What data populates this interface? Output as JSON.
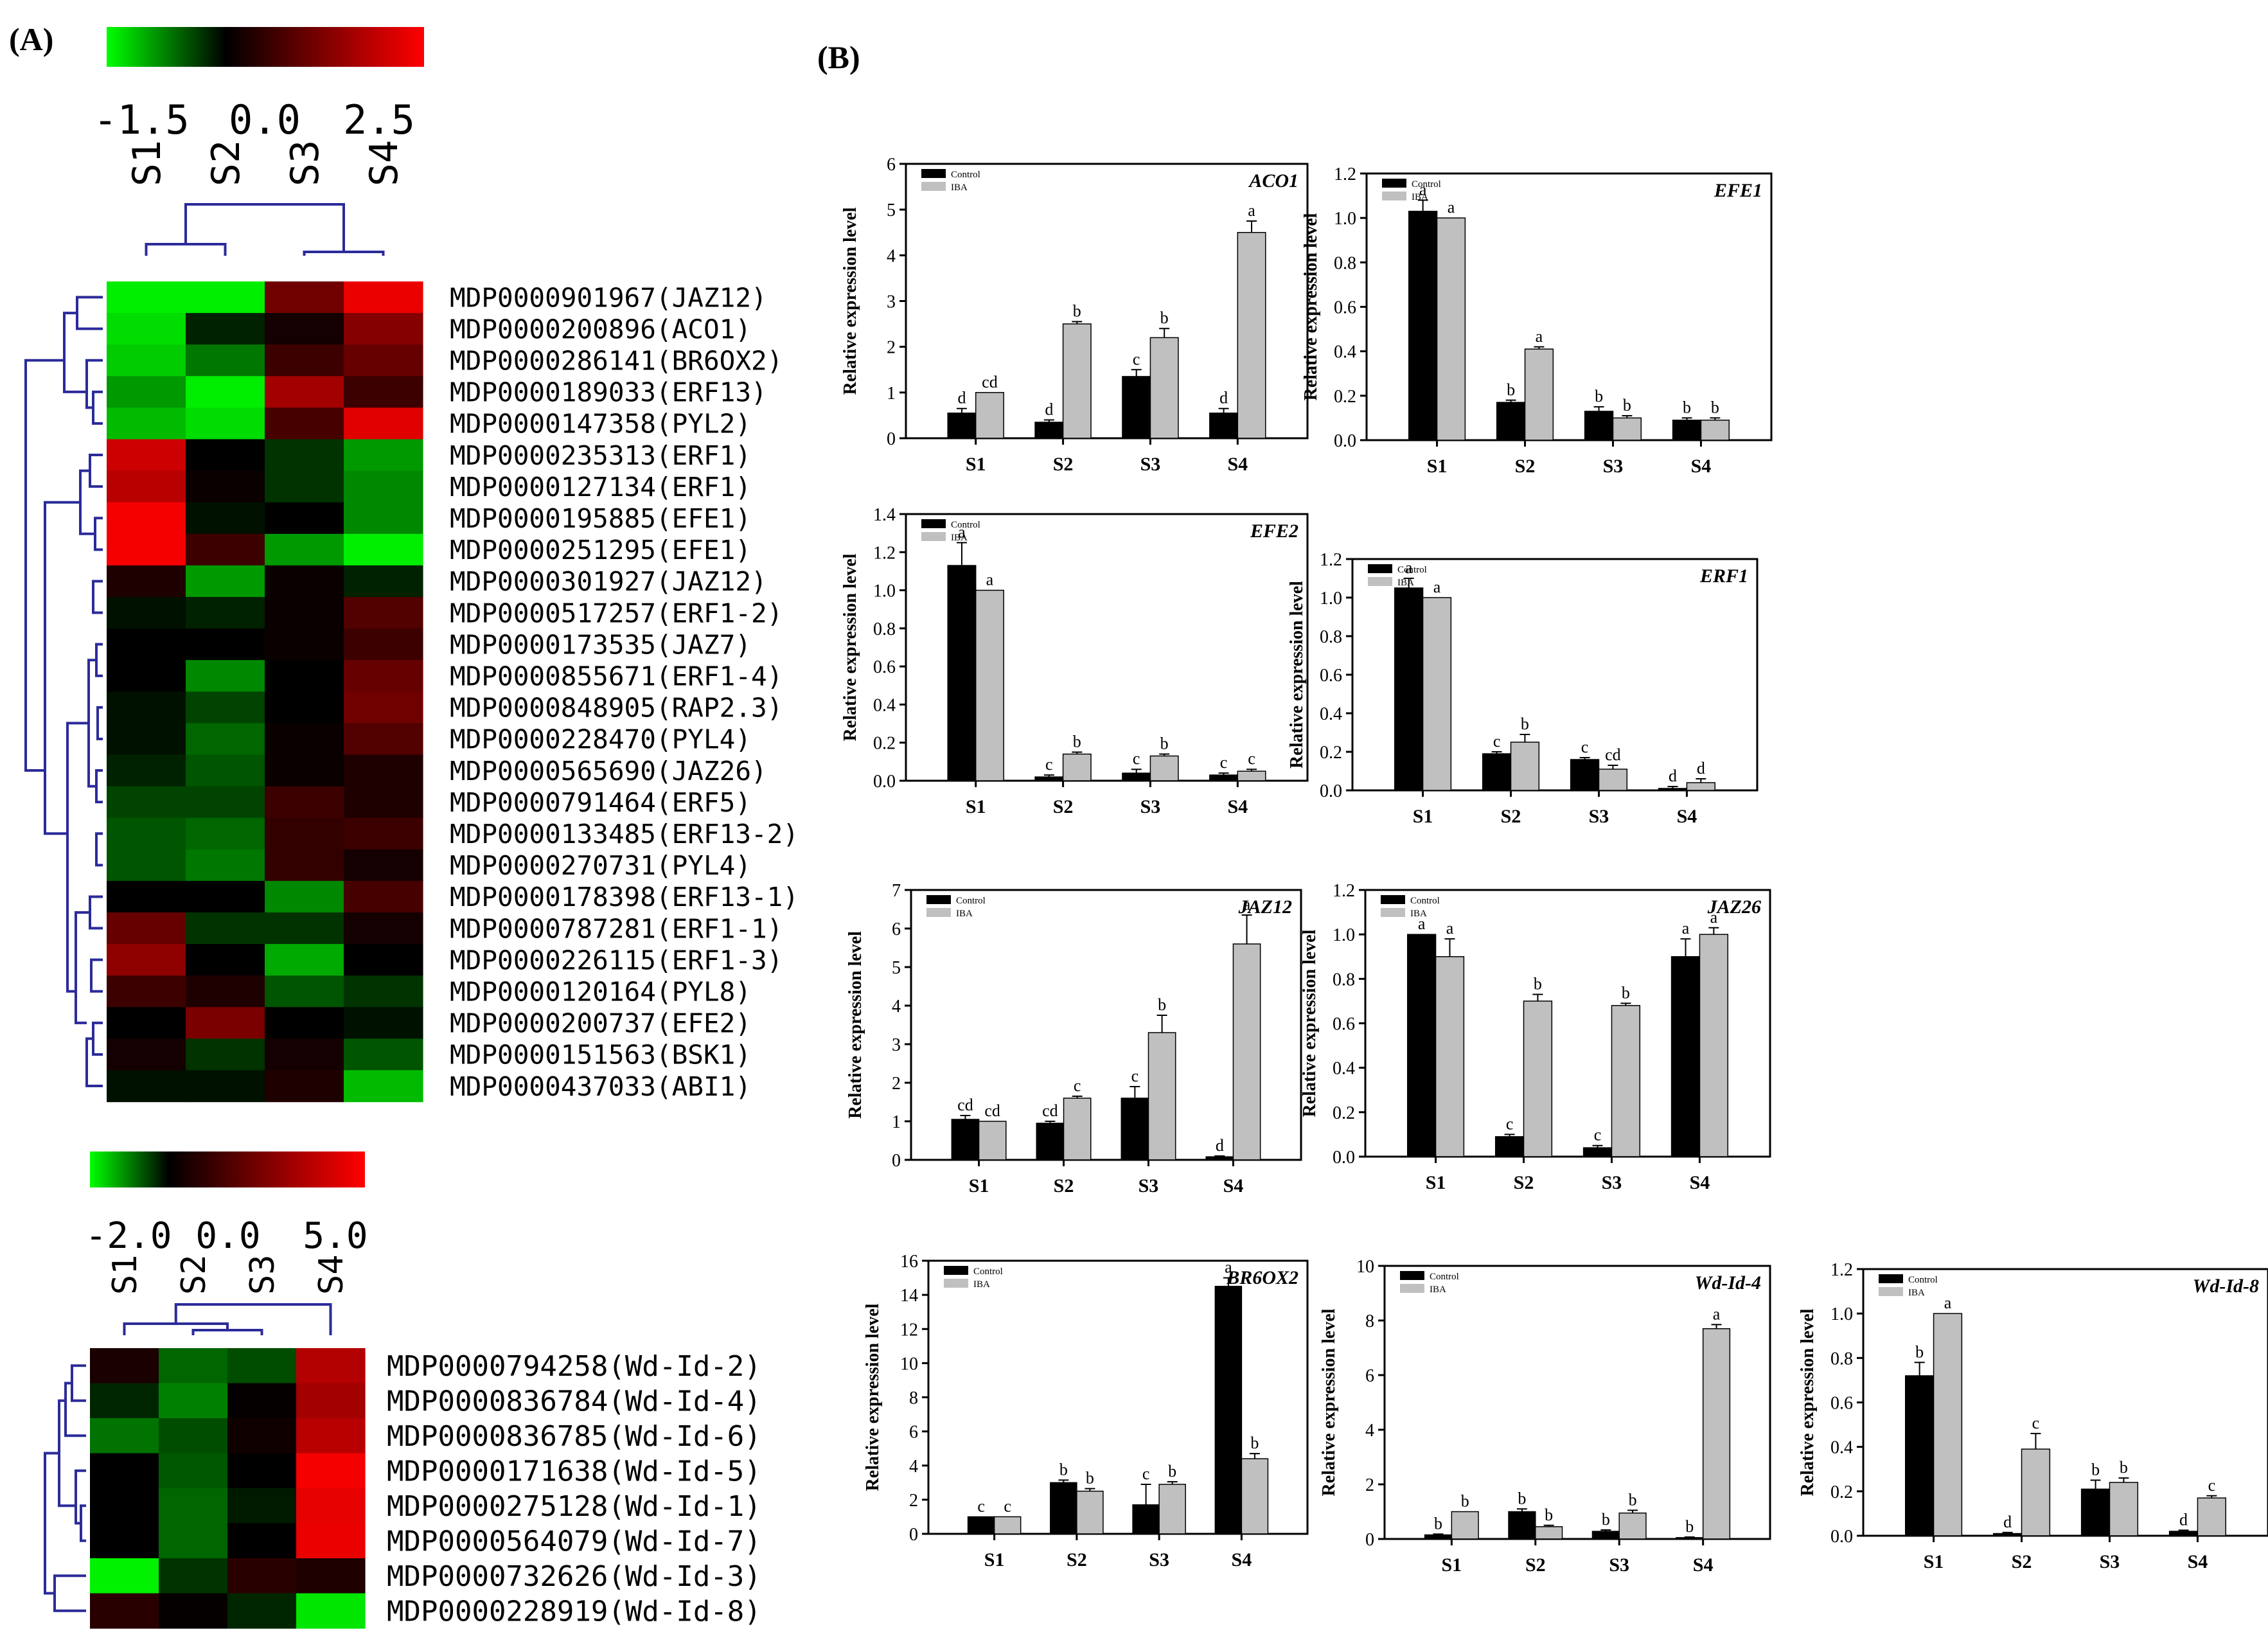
{
  "panel_a_label": "(A)",
  "panel_b_label": "(B)",
  "colors": {
    "green": "#00ff00",
    "black": "#000000",
    "red": "#ff0000",
    "control": "#000000",
    "iba": "#c0c0c0",
    "dendro": "#2b2b9a"
  },
  "heatmap1": {
    "scale_ticks": [
      "-1.5",
      "0.0",
      "2.5"
    ],
    "scale_range": [
      -1.5,
      2.5
    ],
    "columns": [
      "S1",
      "S2",
      "S3",
      "S4"
    ],
    "rows": [
      {
        "label": "MDP0000901967(JAZ12)",
        "values": [
          -1.4,
          -1.4,
          1.1,
          2.3
        ]
      },
      {
        "label": "MDP0000200896(ACO1)",
        "values": [
          -1.3,
          -0.2,
          0.2,
          1.3
        ]
      },
      {
        "label": "MDP0000286141(BR6OX2)",
        "values": [
          -1.2,
          -0.7,
          0.6,
          1.0
        ]
      },
      {
        "label": "MDP0000189033(ERF13)",
        "values": [
          -0.9,
          -1.4,
          1.6,
          0.6
        ]
      },
      {
        "label": "MDP0000147358(PYL2)",
        "values": [
          -1.1,
          -1.3,
          0.7,
          2.2
        ]
      },
      {
        "label": "MDP0000235313(ERF1)",
        "values": [
          2.0,
          0.0,
          -0.3,
          -0.9
        ]
      },
      {
        "label": "MDP0000127134(ERF1)",
        "values": [
          1.8,
          0.1,
          -0.3,
          -0.8
        ]
      },
      {
        "label": "MDP0000195885(EFE1)",
        "values": [
          2.4,
          -0.1,
          0.0,
          -0.8
        ]
      },
      {
        "label": "MDP0000251295(EFE1)",
        "values": [
          2.4,
          0.6,
          -0.9,
          -1.4
        ]
      },
      {
        "label": "MDP0000301927(JAZ12)",
        "values": [
          0.3,
          -0.9,
          0.1,
          -0.2
        ]
      },
      {
        "label": "MDP0000517257(ERF1-2)",
        "values": [
          -0.1,
          -0.2,
          0.1,
          0.8
        ]
      },
      {
        "label": "MDP0000173535(JAZ7)",
        "values": [
          0.0,
          0.0,
          0.1,
          0.6
        ]
      },
      {
        "label": "MDP0000855671(ERF1-4)",
        "values": [
          0.0,
          -0.8,
          0.0,
          1.0
        ]
      },
      {
        "label": "MDP0000848905(RAP2.3)",
        "values": [
          -0.1,
          -0.4,
          0.0,
          1.1
        ]
      },
      {
        "label": "MDP0000228470(PYL4)",
        "values": [
          -0.1,
          -0.6,
          0.1,
          0.8
        ]
      },
      {
        "label": "MDP0000565690(JAZ26)",
        "values": [
          -0.2,
          -0.5,
          0.1,
          0.3
        ]
      },
      {
        "label": "MDP0000791464(ERF5)",
        "values": [
          -0.4,
          -0.4,
          0.6,
          0.3
        ]
      },
      {
        "label": "MDP0000133485(ERF13-2)",
        "values": [
          -0.5,
          -0.6,
          0.5,
          0.6
        ]
      },
      {
        "label": "MDP0000270731(PYL4)",
        "values": [
          -0.5,
          -0.7,
          0.5,
          0.2
        ]
      },
      {
        "label": "MDP0000178398(ERF13-1)",
        "values": [
          0.0,
          0.0,
          -0.8,
          0.7
        ]
      },
      {
        "label": "MDP0000787281(ERF1-1)",
        "values": [
          1.0,
          -0.3,
          -0.3,
          0.2
        ]
      },
      {
        "label": "MDP0000226115(ERF1-3)",
        "values": [
          1.4,
          0.0,
          -1.0,
          0.0
        ]
      },
      {
        "label": "MDP0000120164(PYL8)",
        "values": [
          0.6,
          0.3,
          -0.5,
          -0.3
        ]
      },
      {
        "label": "MDP0000200737(EFE2)",
        "values": [
          0.0,
          1.2,
          0.0,
          -0.1
        ]
      },
      {
        "label": "MDP0000151563(BSK1)",
        "values": [
          0.2,
          -0.3,
          0.2,
          -0.5
        ]
      },
      {
        "label": "MDP0000437033(ABI1)",
        "values": [
          -0.1,
          -0.1,
          0.3,
          -1.1
        ]
      }
    ]
  },
  "heatmap2": {
    "scale_ticks": [
      "-2.0",
      "0.0",
      "5.0"
    ],
    "scale_range": [
      -2.0,
      5.0
    ],
    "columns": [
      "S1",
      "S2",
      "S3",
      "S4"
    ],
    "rows": [
      {
        "label": "MDP0000794258(Wd-Id-2)",
        "values": [
          0.5,
          -0.8,
          -0.6,
          3.5
        ]
      },
      {
        "label": "MDP0000836784(Wd-Id-4)",
        "values": [
          -0.3,
          -1.0,
          0.1,
          3.2
        ]
      },
      {
        "label": "MDP0000836785(Wd-Id-6)",
        "values": [
          -0.9,
          -0.6,
          0.3,
          3.6
        ]
      },
      {
        "label": "MDP0000171638(Wd-Id-5)",
        "values": [
          0.0,
          -0.7,
          0.0,
          4.8
        ]
      },
      {
        "label": "MDP0000275128(Wd-Id-1)",
        "values": [
          0.0,
          -0.8,
          -0.2,
          4.5
        ]
      },
      {
        "label": "MDP0000564079(Wd-Id-7)",
        "values": [
          0.0,
          -0.8,
          0.0,
          4.6
        ]
      },
      {
        "label": "MDP0000732626(Wd-Id-3)",
        "values": [
          -1.9,
          -0.4,
          0.8,
          0.6
        ]
      },
      {
        "label": "MDP0000228919(Wd-Id-8)",
        "values": [
          0.8,
          0.1,
          -0.3,
          -1.8
        ]
      }
    ]
  },
  "chart_data": [
    {
      "type": "bar",
      "title": "ACO1",
      "categories": [
        "S1",
        "S2",
        "S3",
        "S4"
      ],
      "ylabel": "Relative expression level",
      "ylim": [
        0,
        6
      ],
      "yticks": [
        "0",
        "1",
        "2",
        "3",
        "4",
        "5",
        "6"
      ],
      "series": [
        {
          "name": "Control",
          "values": [
            0.55,
            0.35,
            1.35,
            0.55
          ],
          "errors": [
            0.1,
            0.05,
            0.15,
            0.1
          ],
          "letters": [
            "d",
            "d",
            "c",
            "d"
          ]
        },
        {
          "name": "IBA",
          "values": [
            1.0,
            2.5,
            2.2,
            4.5
          ],
          "errors": [
            0.0,
            0.05,
            0.2,
            0.25
          ],
          "letters": [
            "cd",
            "b",
            "b",
            "a"
          ]
        }
      ]
    },
    {
      "type": "bar",
      "title": "EFE1",
      "categories": [
        "S1",
        "S2",
        "S3",
        "S4"
      ],
      "ylabel": "Relative expression level",
      "ylim": [
        0,
        1.2
      ],
      "yticks": [
        "0.0",
        "0.2",
        "0.4",
        "0.6",
        "0.8",
        "1.0",
        "1.2"
      ],
      "series": [
        {
          "name": "Control",
          "values": [
            1.03,
            0.17,
            0.13,
            0.09
          ],
          "errors": [
            0.05,
            0.01,
            0.02,
            0.01
          ],
          "letters": [
            "a",
            "b",
            "b",
            "b"
          ]
        },
        {
          "name": "IBA",
          "values": [
            1.0,
            0.41,
            0.1,
            0.09
          ],
          "errors": [
            0.0,
            0.01,
            0.01,
            0.01
          ],
          "letters": [
            "a",
            "a",
            "b",
            "b"
          ]
        }
      ]
    },
    {
      "type": "bar",
      "title": "EFE2",
      "categories": [
        "S1",
        "S2",
        "S3",
        "S4"
      ],
      "ylabel": "Relative expression level",
      "ylim": [
        0,
        1.4
      ],
      "yticks": [
        "0.0",
        "0.2",
        "0.4",
        "0.6",
        "0.8",
        "1.0",
        "1.2",
        "1.4"
      ],
      "series": [
        {
          "name": "Control",
          "values": [
            1.13,
            0.02,
            0.04,
            0.03
          ],
          "errors": [
            0.12,
            0.01,
            0.02,
            0.01
          ],
          "letters": [
            "a",
            "c",
            "c",
            "c"
          ]
        },
        {
          "name": "IBA",
          "values": [
            1.0,
            0.14,
            0.13,
            0.05
          ],
          "errors": [
            0.0,
            0.01,
            0.01,
            0.01
          ],
          "letters": [
            "a",
            "b",
            "b",
            "c"
          ]
        }
      ]
    },
    {
      "type": "bar",
      "title": "ERF1",
      "categories": [
        "S1",
        "S2",
        "S3",
        "S4"
      ],
      "ylabel": "Relative expression level",
      "ylim": [
        0,
        1.2
      ],
      "yticks": [
        "0.0",
        "0.2",
        "0.4",
        "0.6",
        "0.8",
        "1.0",
        "1.2"
      ],
      "series": [
        {
          "name": "Control",
          "values": [
            1.05,
            0.19,
            0.16,
            0.01
          ],
          "errors": [
            0.05,
            0.01,
            0.01,
            0.01
          ],
          "letters": [
            "a",
            "c",
            "c",
            "d"
          ]
        },
        {
          "name": "IBA",
          "values": [
            1.0,
            0.25,
            0.11,
            0.04
          ],
          "errors": [
            0.0,
            0.04,
            0.02,
            0.02
          ],
          "letters": [
            "a",
            "b",
            "cd",
            "d"
          ]
        }
      ]
    },
    {
      "type": "bar",
      "title": "JAZ12",
      "categories": [
        "S1",
        "S2",
        "S3",
        "S4"
      ],
      "ylabel": "Relative expression level",
      "ylim": [
        0,
        7
      ],
      "yticks": [
        "0",
        "1",
        "2",
        "3",
        "4",
        "5",
        "6",
        "7"
      ],
      "series": [
        {
          "name": "Control",
          "values": [
            1.05,
            0.95,
            1.6,
            0.08
          ],
          "errors": [
            0.1,
            0.05,
            0.3,
            0.02
          ],
          "letters": [
            "cd",
            "cd",
            "c",
            "d"
          ]
        },
        {
          "name": "IBA",
          "values": [
            1.0,
            1.6,
            3.3,
            5.6
          ],
          "errors": [
            0.0,
            0.05,
            0.45,
            0.75
          ],
          "letters": [
            "cd",
            "c",
            "b",
            "a"
          ]
        }
      ]
    },
    {
      "type": "bar",
      "title": "JAZ26",
      "categories": [
        "S1",
        "S2",
        "S3",
        "S4"
      ],
      "ylabel": "Relative expression level",
      "ylim": [
        0,
        1.2
      ],
      "yticks": [
        "0.0",
        "0.2",
        "0.4",
        "0.6",
        "0.8",
        "1.0",
        "1.2"
      ],
      "series": [
        {
          "name": "Control",
          "values": [
            1.0,
            0.09,
            0.04,
            0.9
          ],
          "errors": [
            0.0,
            0.01,
            0.01,
            0.08
          ],
          "letters": [
            "a",
            "c",
            "c",
            "a"
          ]
        },
        {
          "name": "IBA",
          "values": [
            0.9,
            0.7,
            0.68,
            1.0
          ],
          "errors": [
            0.08,
            0.03,
            0.01,
            0.03
          ],
          "letters": [
            "a",
            "b",
            "b",
            "a"
          ]
        }
      ]
    },
    {
      "type": "bar",
      "title": "BR6OX2",
      "categories": [
        "S1",
        "S2",
        "S3",
        "S4"
      ],
      "ylabel": "Relative expression level",
      "ylim": [
        0,
        16
      ],
      "yticks": [
        "0",
        "2",
        "4",
        "6",
        "8",
        "10",
        "12",
        "14",
        "16"
      ],
      "series": [
        {
          "name": "Control",
          "values": [
            1.0,
            3.0,
            1.7,
            14.5
          ],
          "errors": [
            0.0,
            0.15,
            1.2,
            0.5
          ],
          "letters": [
            "c",
            "b",
            "c",
            "a"
          ]
        },
        {
          "name": "IBA",
          "values": [
            1.0,
            2.5,
            2.9,
            4.4
          ],
          "errors": [
            0.0,
            0.15,
            0.15,
            0.3
          ],
          "letters": [
            "c",
            "b",
            "b",
            "b"
          ]
        }
      ]
    },
    {
      "type": "bar",
      "title": "Wd-Id-4",
      "categories": [
        "S1",
        "S2",
        "S3",
        "S4"
      ],
      "ylabel": "Relative expression level",
      "ylim": [
        0,
        10
      ],
      "yticks": [
        "0",
        "2",
        "4",
        "6",
        "8",
        "10"
      ],
      "series": [
        {
          "name": "Control",
          "values": [
            0.15,
            1.0,
            0.28,
            0.05
          ],
          "errors": [
            0.03,
            0.1,
            0.05,
            0.02
          ],
          "letters": [
            "b",
            "b",
            "b",
            "b"
          ]
        },
        {
          "name": "IBA",
          "values": [
            1.0,
            0.45,
            0.95,
            7.7
          ],
          "errors": [
            0.0,
            0.05,
            0.1,
            0.15
          ],
          "letters": [
            "b",
            "b",
            "b",
            "a"
          ]
        }
      ]
    },
    {
      "type": "bar",
      "title": "Wd-Id-8",
      "categories": [
        "S1",
        "S2",
        "S3",
        "S4"
      ],
      "ylabel": "Relative expression level",
      "ylim": [
        0,
        1.2
      ],
      "yticks": [
        "0.0",
        "0.2",
        "0.4",
        "0.6",
        "0.8",
        "1.0",
        "1.2"
      ],
      "series": [
        {
          "name": "Control",
          "values": [
            0.72,
            0.01,
            0.21,
            0.02
          ],
          "errors": [
            0.06,
            0.005,
            0.04,
            0.005
          ],
          "letters": [
            "b",
            "d",
            "b",
            "d"
          ]
        },
        {
          "name": "IBA",
          "values": [
            1.0,
            0.39,
            0.24,
            0.17
          ],
          "errors": [
            0.0,
            0.07,
            0.02,
            0.01
          ],
          "letters": [
            "a",
            "c",
            "b",
            "c"
          ]
        }
      ]
    }
  ]
}
